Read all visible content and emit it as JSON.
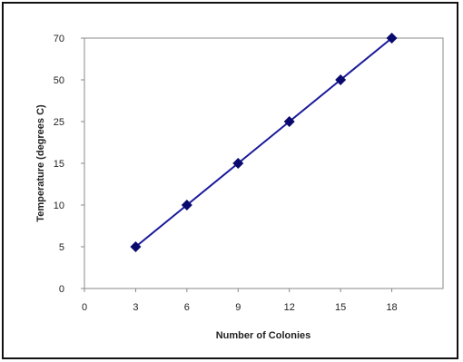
{
  "chart_data": {
    "type": "line",
    "title": "",
    "xlabel": "Number of Colonies",
    "ylabel": "Temperature (degrees C)",
    "x_ticks": [
      "0",
      "3",
      "6",
      "9",
      "12",
      "15",
      "18"
    ],
    "y_ticks": [
      "0",
      "5",
      "10",
      "15",
      "25",
      "50",
      "70"
    ],
    "series": [
      {
        "x": [
          3,
          6,
          9,
          12,
          15,
          18
        ],
        "y": [
          5,
          10,
          15,
          25,
          50,
          70
        ]
      }
    ],
    "grid": false,
    "legend": "none",
    "colors": {
      "line": "#1a1a9c",
      "marker": "#0a0a6e",
      "axis": "#888888",
      "frame": "#111111"
    }
  }
}
